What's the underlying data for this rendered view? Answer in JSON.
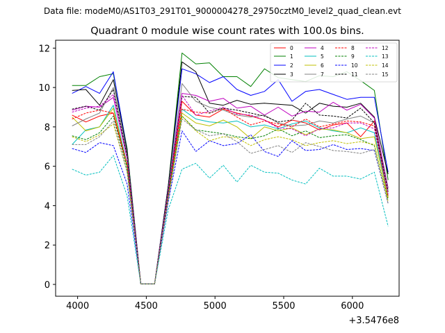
{
  "header": {
    "suptitle": "Data file: modeM0/AS1T03_291T01_9000004278_29750cztM0_level2_quad_clean.evt"
  },
  "chart_data": {
    "type": "line",
    "title": "Quadrant 0 module wise count rates with 100.0s bins.",
    "xlabel": "",
    "ylabel": "",
    "x_offset_label": "+3.5476e8",
    "xlim": [
      3840,
      6340
    ],
    "ylim": [
      -0.6,
      12.4
    ],
    "xticks": [
      4000,
      4500,
      5000,
      5500,
      6000
    ],
    "xtick_labels": [
      "4000",
      "4500",
      "5000",
      "5500",
      "6000"
    ],
    "yticks": [
      0,
      2,
      4,
      6,
      8,
      10,
      12
    ],
    "ytick_labels": [
      "0",
      "2",
      "4",
      "6",
      "8",
      "10",
      "12"
    ],
    "legend_position": "upper-right",
    "x": [
      3960,
      4060,
      4160,
      4260,
      4360,
      4460,
      4560,
      4660,
      4760,
      4860,
      4960,
      5060,
      5160,
      5260,
      5360,
      5460,
      5560,
      5660,
      5760,
      5860,
      5960,
      6060,
      6160,
      6260
    ],
    "series": [
      {
        "name": "0",
        "color": "#ff0000",
        "dash": "solid",
        "values": [
          8.6,
          8.25,
          8.55,
          8.7,
          6.0,
          0.02,
          0.02,
          4.6,
          9.3,
          8.6,
          8.5,
          8.9,
          8.7,
          8.55,
          8.35,
          8.0,
          8.35,
          8.2,
          7.85,
          8.1,
          8.2,
          7.5,
          8.3,
          4.4
        ]
      },
      {
        "name": "1",
        "color": "#008000",
        "dash": "solid",
        "values": [
          10.1,
          10.1,
          10.55,
          10.7,
          6.9,
          0.02,
          0.02,
          5.0,
          11.75,
          11.2,
          11.25,
          10.55,
          10.55,
          10.05,
          10.95,
          10.5,
          10.4,
          10.3,
          10.6,
          10.55,
          10.8,
          10.35,
          9.85,
          5.3
        ]
      },
      {
        "name": "2",
        "color": "#0000ff",
        "dash": "solid",
        "values": [
          9.7,
          10.05,
          9.7,
          10.8,
          6.8,
          0.02,
          0.02,
          5.0,
          10.95,
          10.7,
          10.25,
          10.55,
          9.9,
          9.6,
          9.8,
          10.4,
          9.3,
          9.8,
          9.9,
          9.65,
          9.4,
          9.5,
          9.5,
          5.7
        ]
      },
      {
        "name": "3",
        "color": "#000000",
        "dash": "solid",
        "values": [
          9.85,
          9.9,
          9.1,
          10.4,
          6.8,
          0.02,
          0.02,
          5.0,
          11.3,
          10.8,
          9.2,
          9.1,
          9.35,
          9.15,
          9.2,
          9.15,
          9.1,
          8.7,
          9.2,
          9.05,
          9.0,
          9.2,
          8.5,
          5.6
        ]
      },
      {
        "name": "4",
        "color": "#bf00bf",
        "dash": "solid",
        "values": [
          8.85,
          9.05,
          9.0,
          9.5,
          6.4,
          0.02,
          0.02,
          4.8,
          9.7,
          9.6,
          9.3,
          9.45,
          8.95,
          9.05,
          8.6,
          9.0,
          8.55,
          8.8,
          8.75,
          9.25,
          8.85,
          9.15,
          8.45,
          4.9
        ]
      },
      {
        "name": "5",
        "color": "#00bfbf",
        "dash": "solid",
        "values": [
          7.1,
          7.85,
          8.0,
          9.1,
          6.1,
          0.02,
          0.02,
          4.6,
          8.9,
          8.4,
          8.25,
          8.2,
          8.3,
          8.0,
          8.1,
          7.9,
          8.15,
          8.3,
          7.95,
          7.8,
          7.7,
          7.95,
          7.7,
          4.5
        ]
      },
      {
        "name": "6",
        "color": "#bfbf00",
        "dash": "solid",
        "values": [
          8.5,
          7.8,
          8.0,
          8.95,
          6.0,
          0.02,
          0.02,
          4.5,
          8.7,
          8.2,
          8.05,
          8.35,
          8.0,
          7.4,
          8.0,
          7.8,
          7.95,
          7.6,
          7.9,
          7.85,
          7.7,
          7.4,
          7.5,
          4.4
        ]
      },
      {
        "name": "7",
        "color": "#808080",
        "dash": "solid",
        "values": [
          8.05,
          8.4,
          8.7,
          10.0,
          6.6,
          0.02,
          0.02,
          4.8,
          10.2,
          9.3,
          9.0,
          8.85,
          8.6,
          8.5,
          8.6,
          8.2,
          8.05,
          8.1,
          8.3,
          8.2,
          8.4,
          8.55,
          8.2,
          4.8
        ]
      },
      {
        "name": "8",
        "color": "#ff0000",
        "dash": "dashed",
        "values": [
          8.4,
          8.7,
          8.85,
          8.7,
          6.1,
          0.02,
          0.02,
          4.6,
          8.9,
          8.75,
          8.7,
          8.95,
          8.5,
          8.1,
          8.3,
          8.15,
          8.0,
          8.4,
          8.0,
          8.15,
          8.3,
          8.25,
          8.05,
          4.5
        ]
      },
      {
        "name": "9",
        "color": "#008000",
        "dash": "dashed",
        "values": [
          7.55,
          7.35,
          7.7,
          8.55,
          5.9,
          0.02,
          0.02,
          4.5,
          8.55,
          7.85,
          7.75,
          7.65,
          7.5,
          7.4,
          7.55,
          7.9,
          7.55,
          7.8,
          7.45,
          7.55,
          7.6,
          7.35,
          7.05,
          4.3
        ]
      },
      {
        "name": "10",
        "color": "#0000ff",
        "dash": "dashed",
        "values": [
          6.9,
          6.7,
          7.2,
          7.05,
          5.1,
          0.02,
          0.02,
          4.2,
          7.8,
          6.75,
          7.3,
          7.05,
          7.15,
          7.6,
          6.75,
          6.5,
          7.3,
          6.8,
          6.85,
          7.1,
          6.85,
          6.9,
          6.8,
          4.1
        ]
      },
      {
        "name": "11",
        "color": "#000000",
        "dash": "dashed",
        "values": [
          8.9,
          9.05,
          8.85,
          9.9,
          6.5,
          0.02,
          0.02,
          4.7,
          9.55,
          9.5,
          8.7,
          8.95,
          8.85,
          8.7,
          8.55,
          8.25,
          8.35,
          9.2,
          8.6,
          8.55,
          8.45,
          8.95,
          8.2,
          4.7
        ]
      },
      {
        "name": "12",
        "color": "#bf00bf",
        "dash": "dashed",
        "values": [
          8.75,
          8.95,
          9.05,
          9.65,
          6.4,
          0.02,
          0.02,
          4.7,
          9.6,
          8.6,
          8.8,
          9.0,
          8.65,
          8.6,
          8.35,
          7.95,
          7.9,
          7.55,
          7.9,
          7.95,
          8.2,
          8.2,
          7.9,
          4.6
        ]
      },
      {
        "name": "13",
        "color": "#00bfbf",
        "dash": "dashed",
        "values": [
          5.85,
          5.55,
          5.7,
          6.55,
          4.5,
          0.02,
          0.02,
          3.8,
          5.85,
          6.15,
          5.4,
          6.05,
          5.2,
          6.05,
          5.7,
          5.65,
          5.3,
          5.1,
          5.9,
          5.5,
          5.5,
          5.35,
          5.7,
          2.95
        ]
      },
      {
        "name": "14",
        "color": "#bfbf00",
        "dash": "dashed",
        "values": [
          7.5,
          7.25,
          7.6,
          8.15,
          5.7,
          0.02,
          0.02,
          4.4,
          8.55,
          7.8,
          7.3,
          7.5,
          7.45,
          7.05,
          7.35,
          7.5,
          7.35,
          7.05,
          7.2,
          7.3,
          7.15,
          7.25,
          7.1,
          4.2
        ]
      },
      {
        "name": "15",
        "color": "#808080",
        "dash": "dashed",
        "values": [
          7.1,
          7.1,
          7.5,
          8.3,
          5.7,
          0.02,
          0.02,
          4.3,
          8.4,
          7.85,
          7.55,
          7.65,
          7.25,
          6.65,
          6.85,
          7.05,
          6.7,
          7.2,
          7.0,
          6.8,
          6.75,
          6.65,
          6.85,
          4.1
        ]
      }
    ]
  }
}
